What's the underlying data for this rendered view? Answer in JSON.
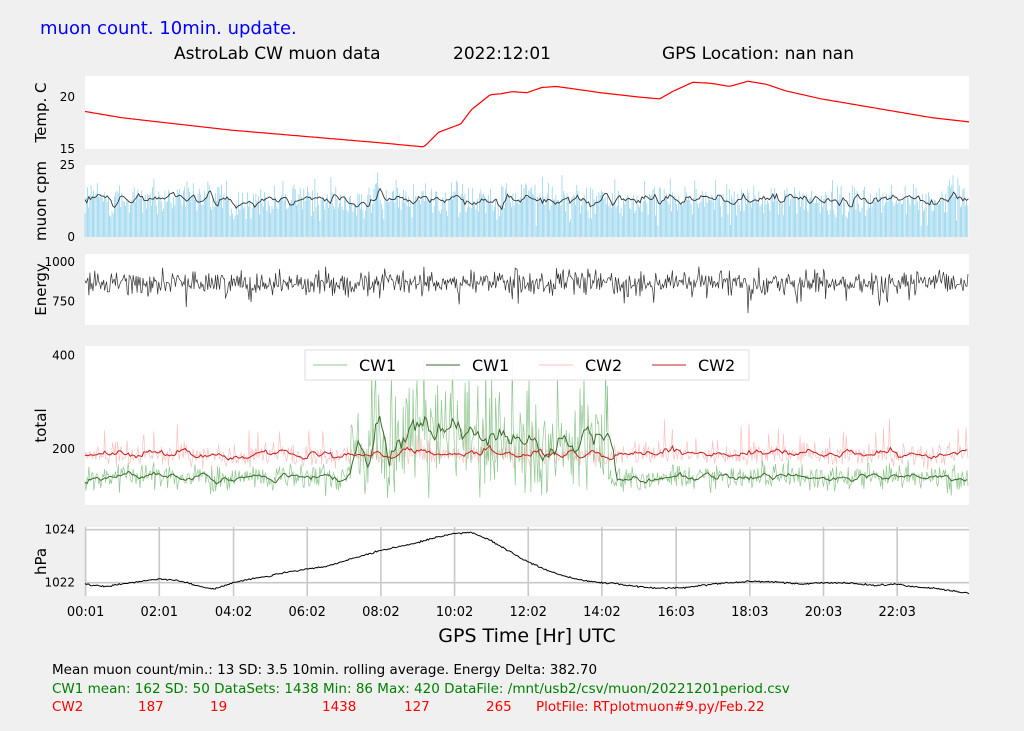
{
  "header": {
    "top_label": "muon count.  10min. update.",
    "title": "AstroLab CW muon data",
    "date": "2022:12:01",
    "gps": "GPS Location: nan   nan"
  },
  "colors": {
    "temp": "#ff0000",
    "cpm_bar": "#87ceeb",
    "cpm_avg": "#333333",
    "energy": "#333333",
    "cw1_raw": "#90c890",
    "cw1_avg": "#3a6b2a",
    "cw2_raw": "#ffc0c0",
    "cw2_avg": "#c02020",
    "hpa": "#000000",
    "grid": "#c8c8c8",
    "panel": "#ffffff",
    "background": "#f0f0f0"
  },
  "chart_data": [
    {
      "type": "line",
      "ylabel": "Temp. C",
      "yticks": [
        "15",
        "20"
      ],
      "ylim": [
        15,
        22
      ],
      "xlim": [
        0,
        24
      ],
      "grid": false,
      "x": [
        0,
        1,
        2,
        3,
        4,
        5,
        6,
        7,
        8,
        9.2,
        9.6,
        10.2,
        10.5,
        11,
        11.3,
        11.6,
        12,
        12.4,
        12.8,
        13.2,
        14,
        15,
        15.6,
        16,
        16.5,
        17,
        17.5,
        18,
        18.5,
        19,
        20,
        21,
        22,
        23,
        24
      ],
      "y": [
        18.6,
        18.0,
        17.6,
        17.2,
        16.8,
        16.5,
        16.2,
        15.9,
        15.6,
        15.2,
        16.6,
        17.4,
        18.8,
        20.2,
        20.3,
        20.5,
        20.4,
        20.9,
        21.0,
        20.8,
        20.4,
        20.0,
        19.8,
        20.6,
        21.4,
        21.3,
        21.0,
        21.5,
        21.2,
        20.6,
        19.8,
        19.2,
        18.6,
        18.0,
        17.6
      ]
    },
    {
      "type": "bar",
      "ylabel": "muon cpm",
      "yticks": [
        "0",
        "25"
      ],
      "ylim": [
        0,
        25
      ],
      "xlim": [
        0,
        24
      ],
      "mean": 13,
      "sd": 3.5,
      "series": [
        {
          "values_kind": "1-min counts"
        },
        {
          "values_kind": "10min. rolling average"
        }
      ]
    },
    {
      "type": "line",
      "ylabel": "Energy",
      "yticks": [
        "750",
        "1000"
      ],
      "ylim": [
        600,
        1050
      ],
      "xlim": [
        0,
        24
      ],
      "mean": 870,
      "range": [
        680,
        970
      ]
    },
    {
      "type": "line",
      "ylabel": "total",
      "yticks": [
        "200",
        "400"
      ],
      "ylim": [
        80,
        420
      ],
      "xlim": [
        0,
        24
      ],
      "legend_position": "top-center",
      "series": [
        {
          "name": "CW1",
          "mean": 162,
          "sd": 50
        },
        {
          "name": "CW1",
          "mean": 162
        },
        {
          "name": "CW2",
          "mean": 187,
          "sd": 19
        },
        {
          "name": "CW2",
          "mean": 187
        }
      ]
    },
    {
      "type": "line",
      "ylabel": "hPa",
      "yticks": [
        "1022",
        "1024"
      ],
      "ylim": [
        1021.5,
        1024.1
      ],
      "xlim": [
        0,
        24
      ],
      "grid": true,
      "x": [
        0,
        0.5,
        1,
        1.5,
        2,
        2.5,
        3,
        3.5,
        4,
        4.5,
        5,
        5.5,
        6,
        6.5,
        7,
        7.5,
        8,
        8.5,
        9,
        9.5,
        10,
        10.5,
        11,
        11.5,
        12,
        12.5,
        13,
        13.5,
        14,
        14.5,
        15,
        15.5,
        16,
        16.5,
        17,
        17.5,
        18,
        18.5,
        19,
        19.5,
        20,
        20.5,
        21,
        21.5,
        22,
        22.5,
        23,
        23.5,
        24
      ],
      "y": [
        1021.95,
        1021.85,
        1021.95,
        1022.05,
        1022.15,
        1022.1,
        1021.9,
        1021.75,
        1022.0,
        1022.15,
        1022.25,
        1022.4,
        1022.5,
        1022.6,
        1022.8,
        1023.0,
        1023.2,
        1023.35,
        1023.5,
        1023.7,
        1023.85,
        1023.9,
        1023.6,
        1023.2,
        1022.8,
        1022.5,
        1022.25,
        1022.1,
        1022.0,
        1021.95,
        1021.85,
        1021.8,
        1021.8,
        1021.85,
        1021.95,
        1022.0,
        1022.05,
        1022.05,
        1022.0,
        1021.95,
        1022.0,
        1022.0,
        1021.95,
        1021.9,
        1021.95,
        1021.85,
        1021.8,
        1021.7,
        1021.6
      ]
    }
  ],
  "xaxis": {
    "label": "GPS Time  [Hr] UTC",
    "tick_hours": [
      0.0167,
      2.0167,
      4.0333,
      6.0333,
      8.0333,
      10.0333,
      12.0333,
      14.0333,
      16.05,
      18.05,
      20.05,
      22.05
    ],
    "ticks": [
      "00:01",
      "02:01",
      "04:02",
      "06:02",
      "08:02",
      "10:02",
      "12:02",
      "14:02",
      "16:03",
      "18:03",
      "20:03",
      "22:03"
    ]
  },
  "footer": {
    "line1": "Mean muon count/min.: 13  SD: 3.5   10min. rolling average.    Energy Delta:  382.70",
    "line2": "CW1 mean: 162     SD: 50    DataSets: 1438    Min: 86    Max: 420     DataFile: /mnt/usb2/csv/muon/20221201period.csv",
    "cw2": {
      "label": "CW2",
      "mean": "187",
      "sd": "19",
      "datasets": "1438",
      "min": "127",
      "max": "265",
      "plotfile": "PlotFile: RTplotmuon#9.py/Feb.22"
    }
  }
}
